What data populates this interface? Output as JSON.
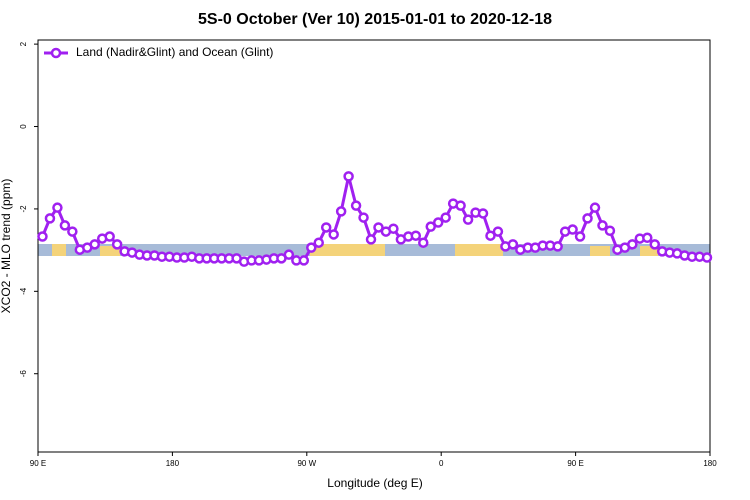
{
  "chart_data": {
    "type": "line",
    "title": "5S-0 October (Ver 10)   2015-01-01 to 2020-12-18",
    "xlabel": "Longitude (deg E)",
    "ylabel": "XCO2 - MLO trend (ppm)",
    "xlim": [
      90,
      540
    ],
    "xticks": [
      {
        "value": 90,
        "label": "90 E"
      },
      {
        "value": 180,
        "label": "180"
      },
      {
        "value": 270,
        "label": "90 W"
      },
      {
        "value": 360,
        "label": "0"
      },
      {
        "value": 450,
        "label": "90 E"
      },
      {
        "value": 540,
        "label": "180"
      }
    ],
    "ylim": [
      -7.9,
      2.1
    ],
    "yticks": [
      -6,
      -4,
      -2,
      0,
      2
    ],
    "legend": "upper left",
    "x": [
      93,
      98,
      103,
      108,
      113,
      118,
      123,
      128,
      133,
      138,
      143,
      148,
      153,
      158,
      163,
      168,
      173,
      178,
      183,
      188,
      193,
      198,
      203,
      208,
      213,
      218,
      223,
      228,
      233,
      238,
      243,
      248,
      253,
      258,
      263,
      268,
      273,
      278,
      283,
      288,
      293,
      298,
      303,
      308,
      313,
      318,
      323,
      328,
      333,
      338,
      343,
      348,
      353,
      358,
      363,
      368,
      373,
      378,
      383,
      388,
      393,
      398,
      403,
      408,
      413,
      418,
      423,
      428,
      433,
      438,
      443,
      448,
      453,
      458,
      463,
      468,
      473,
      478,
      483,
      488,
      493,
      498,
      503,
      508,
      513,
      518,
      523,
      528,
      533,
      538
    ],
    "series": [
      {
        "name": "Land (Nadir&Glint) and Ocean (Glint)",
        "color": "#a020f0",
        "values": [
          -2.67,
          -2.23,
          -1.97,
          -2.4,
          -2.55,
          -2.99,
          -2.94,
          -2.86,
          -2.72,
          -2.67,
          -2.86,
          -3.03,
          -3.06,
          -3.11,
          -3.13,
          -3.13,
          -3.16,
          -3.16,
          -3.18,
          -3.18,
          -3.16,
          -3.2,
          -3.2,
          -3.2,
          -3.2,
          -3.2,
          -3.2,
          -3.28,
          -3.25,
          -3.25,
          -3.23,
          -3.2,
          -3.2,
          -3.11,
          -3.25,
          -3.25,
          -2.94,
          -2.82,
          -2.45,
          -2.62,
          -2.06,
          -1.21,
          -1.92,
          -2.21,
          -2.74,
          -2.45,
          -2.55,
          -2.48,
          -2.74,
          -2.67,
          -2.65,
          -2.82,
          -2.43,
          -2.33,
          -2.21,
          -1.87,
          -1.92,
          -2.26,
          -2.09,
          -2.11,
          -2.65,
          -2.55,
          -2.91,
          -2.86,
          -2.99,
          -2.94,
          -2.94,
          -2.89,
          -2.89,
          -2.91,
          -2.55,
          -2.5,
          -2.67,
          -2.23,
          -1.97,
          -2.4,
          -2.53,
          -2.99,
          -2.94,
          -2.86,
          -2.72,
          -2.7,
          -2.86,
          -3.03,
          -3.06,
          -3.08,
          -3.13,
          -3.16,
          -3.16,
          -3.18
        ]
      }
    ]
  }
}
